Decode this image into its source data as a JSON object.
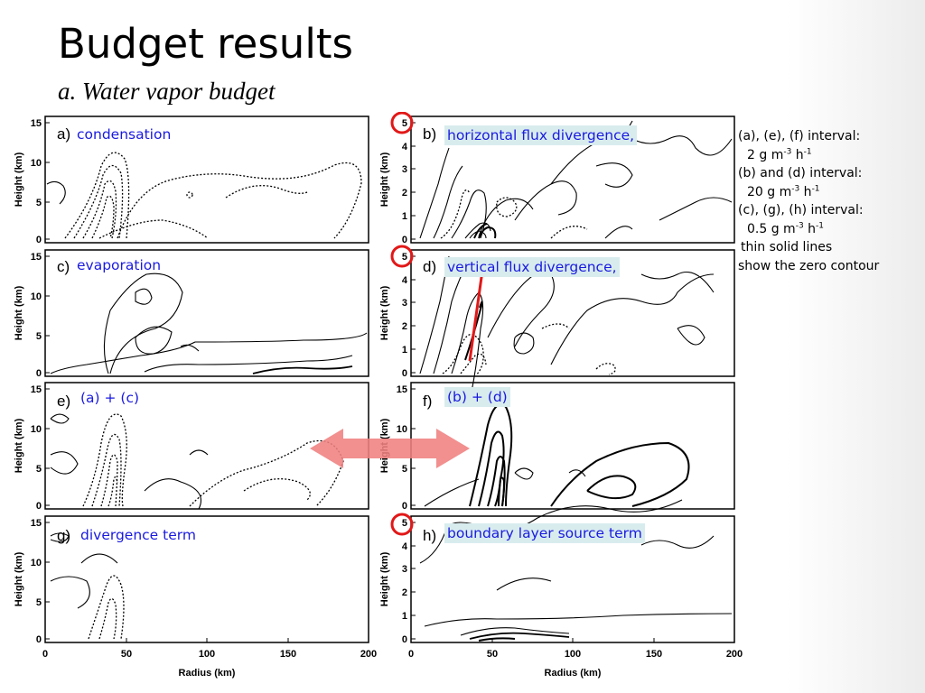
{
  "slide": {
    "title": "Budget results",
    "subtitle": "a. Water vapor budget"
  },
  "panels": [
    {
      "letter": "a)",
      "caption": "condensation",
      "y_ticks": [
        "15",
        "10",
        "5",
        "0"
      ],
      "ylabel": "Height (km)"
    },
    {
      "letter": "b)",
      "caption": "horizontal flux divergence,",
      "y_ticks": [
        "5",
        "4",
        "3",
        "2",
        "1",
        "0"
      ],
      "ylabel": "Height (km)"
    },
    {
      "letter": "c)",
      "caption": "evaporation",
      "y_ticks": [
        "15",
        "10",
        "5",
        "0"
      ],
      "ylabel": "Height (km)"
    },
    {
      "letter": "d)",
      "caption": "vertical flux divergence,",
      "y_ticks": [
        "5",
        "4",
        "3",
        "2",
        "1",
        "0"
      ],
      "ylabel": "Height (km)"
    },
    {
      "letter": "e)",
      "caption": "(a) + (c)",
      "y_ticks": [
        "15",
        "10",
        "5",
        "0"
      ],
      "ylabel": "Height (km)"
    },
    {
      "letter": "f)",
      "caption": "(b) + (d)",
      "y_ticks": [
        "15",
        "10",
        "5",
        "0"
      ],
      "ylabel": "Height (km)"
    },
    {
      "letter": "g)",
      "caption": "divergence term",
      "y_ticks": [
        "15",
        "10",
        "5",
        "0"
      ],
      "ylabel": "Height (km)"
    },
    {
      "letter": "h)",
      "caption": "boundary layer source term",
      "y_ticks": [
        "5",
        "4",
        "3",
        "2",
        "1",
        "0"
      ],
      "ylabel": "Height (km)"
    }
  ],
  "x_axis": {
    "ticks": [
      "0",
      "50",
      "100",
      "150",
      "200"
    ],
    "label": "Radius (km)"
  },
  "notes": {
    "l1": "(a), (e), (f) interval:",
    "l2": {
      "num": "2 g m",
      "exp1": "-3",
      "unit": " h",
      "exp2": "-1"
    },
    "l3": "(b) and (d) interval:",
    "l4": {
      "num": "20 g m",
      "exp1": "-3",
      "unit": " h",
      "exp2": "-1"
    },
    "l5": "(c), (g), (h) interval:",
    "l6": {
      "num": "0.5 g m",
      "exp1": "-3",
      "unit": " h",
      "exp2": "-1"
    },
    "l7": "thin solid lines",
    "l8": "show the zero contour"
  },
  "colors": {
    "caption_text": "#1a1ae0",
    "caption_highlight": "#d8ecee",
    "circle_marker": "#e21818",
    "arrow_vertical": "#e21818",
    "arrow_double": "#f08080"
  }
}
